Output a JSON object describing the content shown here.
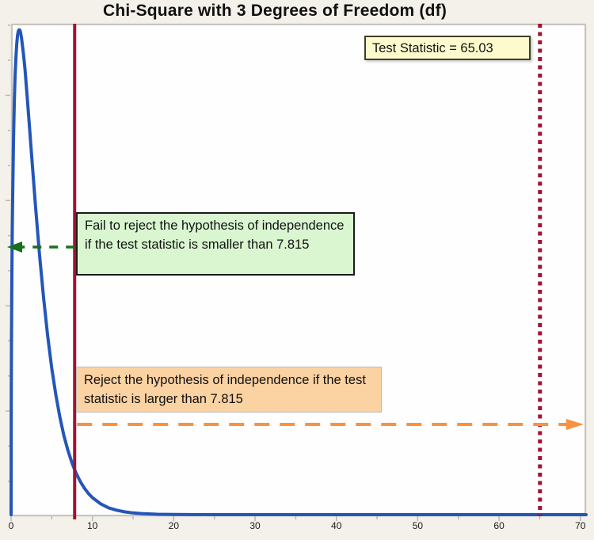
{
  "page": {
    "background": "#f4f1ea",
    "title": "Chi-Square with 3 Degrees of Freedom (df)"
  },
  "chart_data": {
    "type": "line",
    "title": "Chi-Square with 3 Degrees of Freedom (df)",
    "distribution": "chi-square probability density function",
    "degrees_of_freedom": 3,
    "xlim": [
      0,
      70.7
    ],
    "ylim": [
      0,
      0.245
    ],
    "grid": false,
    "x_ticks": [
      0,
      10,
      20,
      30,
      40,
      50,
      60,
      70
    ],
    "x_minor_ticks": [
      5,
      15,
      25,
      35,
      45,
      55,
      65
    ],
    "series": [
      {
        "name": "chi-square pdf (df=3)",
        "color": "#2456b8",
        "points": [
          [
            0,
            0
          ],
          [
            0.02,
            0.0559
          ],
          [
            0.05,
            0.087
          ],
          [
            0.1,
            0.12
          ],
          [
            0.15,
            0.143
          ],
          [
            0.2,
            0.1614
          ],
          [
            0.3,
            0.188
          ],
          [
            0.4,
            0.2066
          ],
          [
            0.5,
            0.2197
          ],
          [
            0.6,
            0.2288
          ],
          [
            0.7,
            0.2352
          ],
          [
            0.8,
            0.2395
          ],
          [
            0.9,
            0.2414
          ],
          [
            1,
            0.242
          ],
          [
            1.1,
            0.2417
          ],
          [
            1.2,
            0.2399
          ],
          [
            1.3,
            0.2374
          ],
          [
            1.5,
            0.2307
          ],
          [
            1.7,
            0.2226
          ],
          [
            2,
            0.2076
          ],
          [
            2.3,
            0.1915
          ],
          [
            2.6,
            0.1753
          ],
          [
            3,
            0.1541
          ],
          [
            3.5,
            0.1297
          ],
          [
            4,
            0.108
          ],
          [
            4.5,
            0.0892
          ],
          [
            5,
            0.0732
          ],
          [
            5.5,
            0.0598
          ],
          [
            6,
            0.0487
          ],
          [
            6.5,
            0.0394
          ],
          [
            7,
            0.0319
          ],
          [
            7.5,
            0.0257
          ],
          [
            7.815,
            0.0224
          ],
          [
            8,
            0.0207
          ],
          [
            8.5,
            0.0166
          ],
          [
            9,
            0.0133
          ],
          [
            9.5,
            0.0106
          ],
          [
            10,
            0.0085
          ],
          [
            11,
            0.0054
          ],
          [
            12,
            0.0034
          ],
          [
            13,
            0.0022
          ],
          [
            14,
            0.0014
          ],
          [
            15,
            0.00085
          ],
          [
            16,
            0.00054
          ],
          [
            18,
            0.00021
          ],
          [
            20,
            8e-05
          ],
          [
            25,
            1e-05
          ],
          [
            30,
            0
          ],
          [
            40,
            0
          ],
          [
            50,
            0
          ],
          [
            60,
            0
          ],
          [
            70.7,
            0
          ]
        ]
      }
    ],
    "reference_lines": [
      {
        "name": "critical-value-line",
        "value": 7.815,
        "style": "solid",
        "color": "#a21232"
      },
      {
        "name": "test-statistic-line",
        "value": 65.03,
        "style": "dotted",
        "color": "#a21232"
      }
    ],
    "critical_value": 7.815,
    "test_statistic": 65.03
  },
  "annotations": {
    "test_statistic_box": {
      "text": "Test Statistic = 65.03",
      "bg": "#fdfbce"
    },
    "fail_to_reject_box": {
      "text": "Fail to reject the hypothesis of independence if the test statistic is smaller than 7.815",
      "bg": "#d9f6d0"
    },
    "reject_box": {
      "text": "Reject the hypothesis of independence if the test statistic is larger than 7.815",
      "bg": "#fbd2a1"
    }
  },
  "arrows": {
    "fail_arrow": {
      "direction": "left",
      "color": "#17701c",
      "style": "dashed"
    },
    "reject_arrow": {
      "direction": "right",
      "color": "#f79340",
      "style": "dashed"
    }
  }
}
